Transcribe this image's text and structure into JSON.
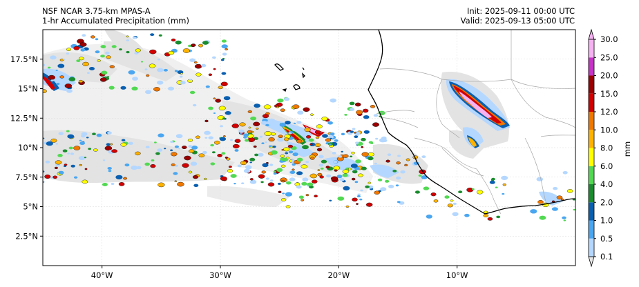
{
  "header": {
    "model": "NSF NCAR 3.75-km MPAS-A",
    "field": "1-hr Accumulated Precipitation (mm)",
    "init": "Init: 2025-09-11 00:00 UTC",
    "valid": "Valid: 2025-09-13 05:00 UTC"
  },
  "map": {
    "lon_range": [
      -45,
      0
    ],
    "lat_range": [
      0,
      20
    ],
    "x_ticks": [
      {
        "lon": -40,
        "label": "40°W"
      },
      {
        "lon": -30,
        "label": "30°W"
      },
      {
        "lon": -20,
        "label": "20°W"
      },
      {
        "lon": -10,
        "label": "10°W"
      }
    ],
    "y_ticks": [
      {
        "lat": 2.5,
        "label": "2.5°N"
      },
      {
        "lat": 5,
        "label": "5°N"
      },
      {
        "lat": 7.5,
        "label": "7.5°N"
      },
      {
        "lat": 10,
        "label": "10°N"
      },
      {
        "lat": 12.5,
        "label": "12.5°N"
      },
      {
        "lat": 15,
        "label": "15°N"
      },
      {
        "lat": 17.5,
        "label": "17.5°N"
      }
    ],
    "grid": true
  },
  "colorbar": {
    "label": "mm",
    "levels": [
      "0.1",
      "0.5",
      "1.0",
      "2.0",
      "4.0",
      "6.0",
      "8.0",
      "10.0",
      "12.0",
      "15.0",
      "20.0",
      "25.0",
      "30.0"
    ],
    "colors": [
      "#e6e6e6",
      "#b4d7ff",
      "#4aa6f0",
      "#0a5fb0",
      "#1a8c2e",
      "#52d952",
      "#ffff00",
      "#ffb300",
      "#f07800",
      "#d20000",
      "#9c0000",
      "#c832c8",
      "#f6b2f2"
    ],
    "extend": "both"
  }
}
